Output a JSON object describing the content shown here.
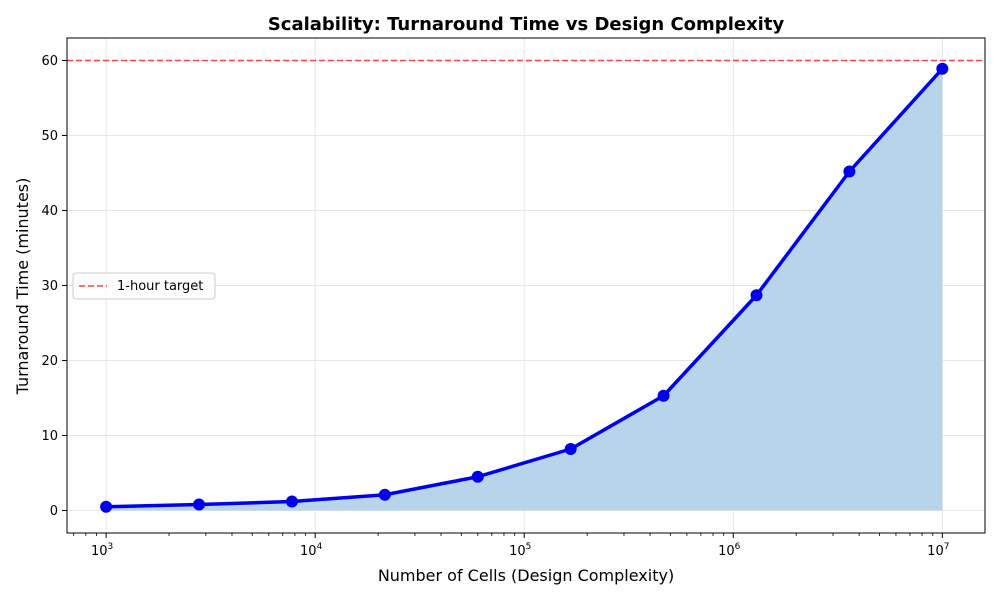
{
  "chart_data": {
    "type": "line",
    "title": "Scalability: Turnaround Time vs Design Complexity",
    "xlabel": "Number of Cells (Design Complexity)",
    "ylabel": "Turnaround Time (minutes)",
    "xscale": "log",
    "xlim": [
      650,
      16000000
    ],
    "ylim": [
      -3,
      63
    ],
    "x_ticks": [
      {
        "value": 1000,
        "base": "10",
        "exp": "3"
      },
      {
        "value": 10000,
        "base": "10",
        "exp": "4"
      },
      {
        "value": 100000,
        "base": "10",
        "exp": "5"
      },
      {
        "value": 1000000,
        "base": "10",
        "exp": "6"
      },
      {
        "value": 10000000,
        "base": "10",
        "exp": "7"
      }
    ],
    "y_ticks": [
      0,
      10,
      20,
      30,
      40,
      50,
      60
    ],
    "grid": true,
    "fill_under_line": true,
    "series": [
      {
        "x": [
          1000,
          2783,
          7743,
          21544,
          59948,
          166810,
          464159,
          1291550,
          3593814,
          10000000
        ],
        "y": [
          0.5,
          0.8,
          1.2,
          2.1,
          4.5,
          8.2,
          15.3,
          28.7,
          45.2,
          58.9
        ],
        "color": "#0000ee",
        "fill_color": "#b8d4ea"
      }
    ],
    "reference_lines": [
      {
        "name": "1-hour target",
        "y": 60,
        "color": "#ff4444",
        "style": "dashed"
      }
    ],
    "legend": {
      "placement": "center-left"
    }
  }
}
